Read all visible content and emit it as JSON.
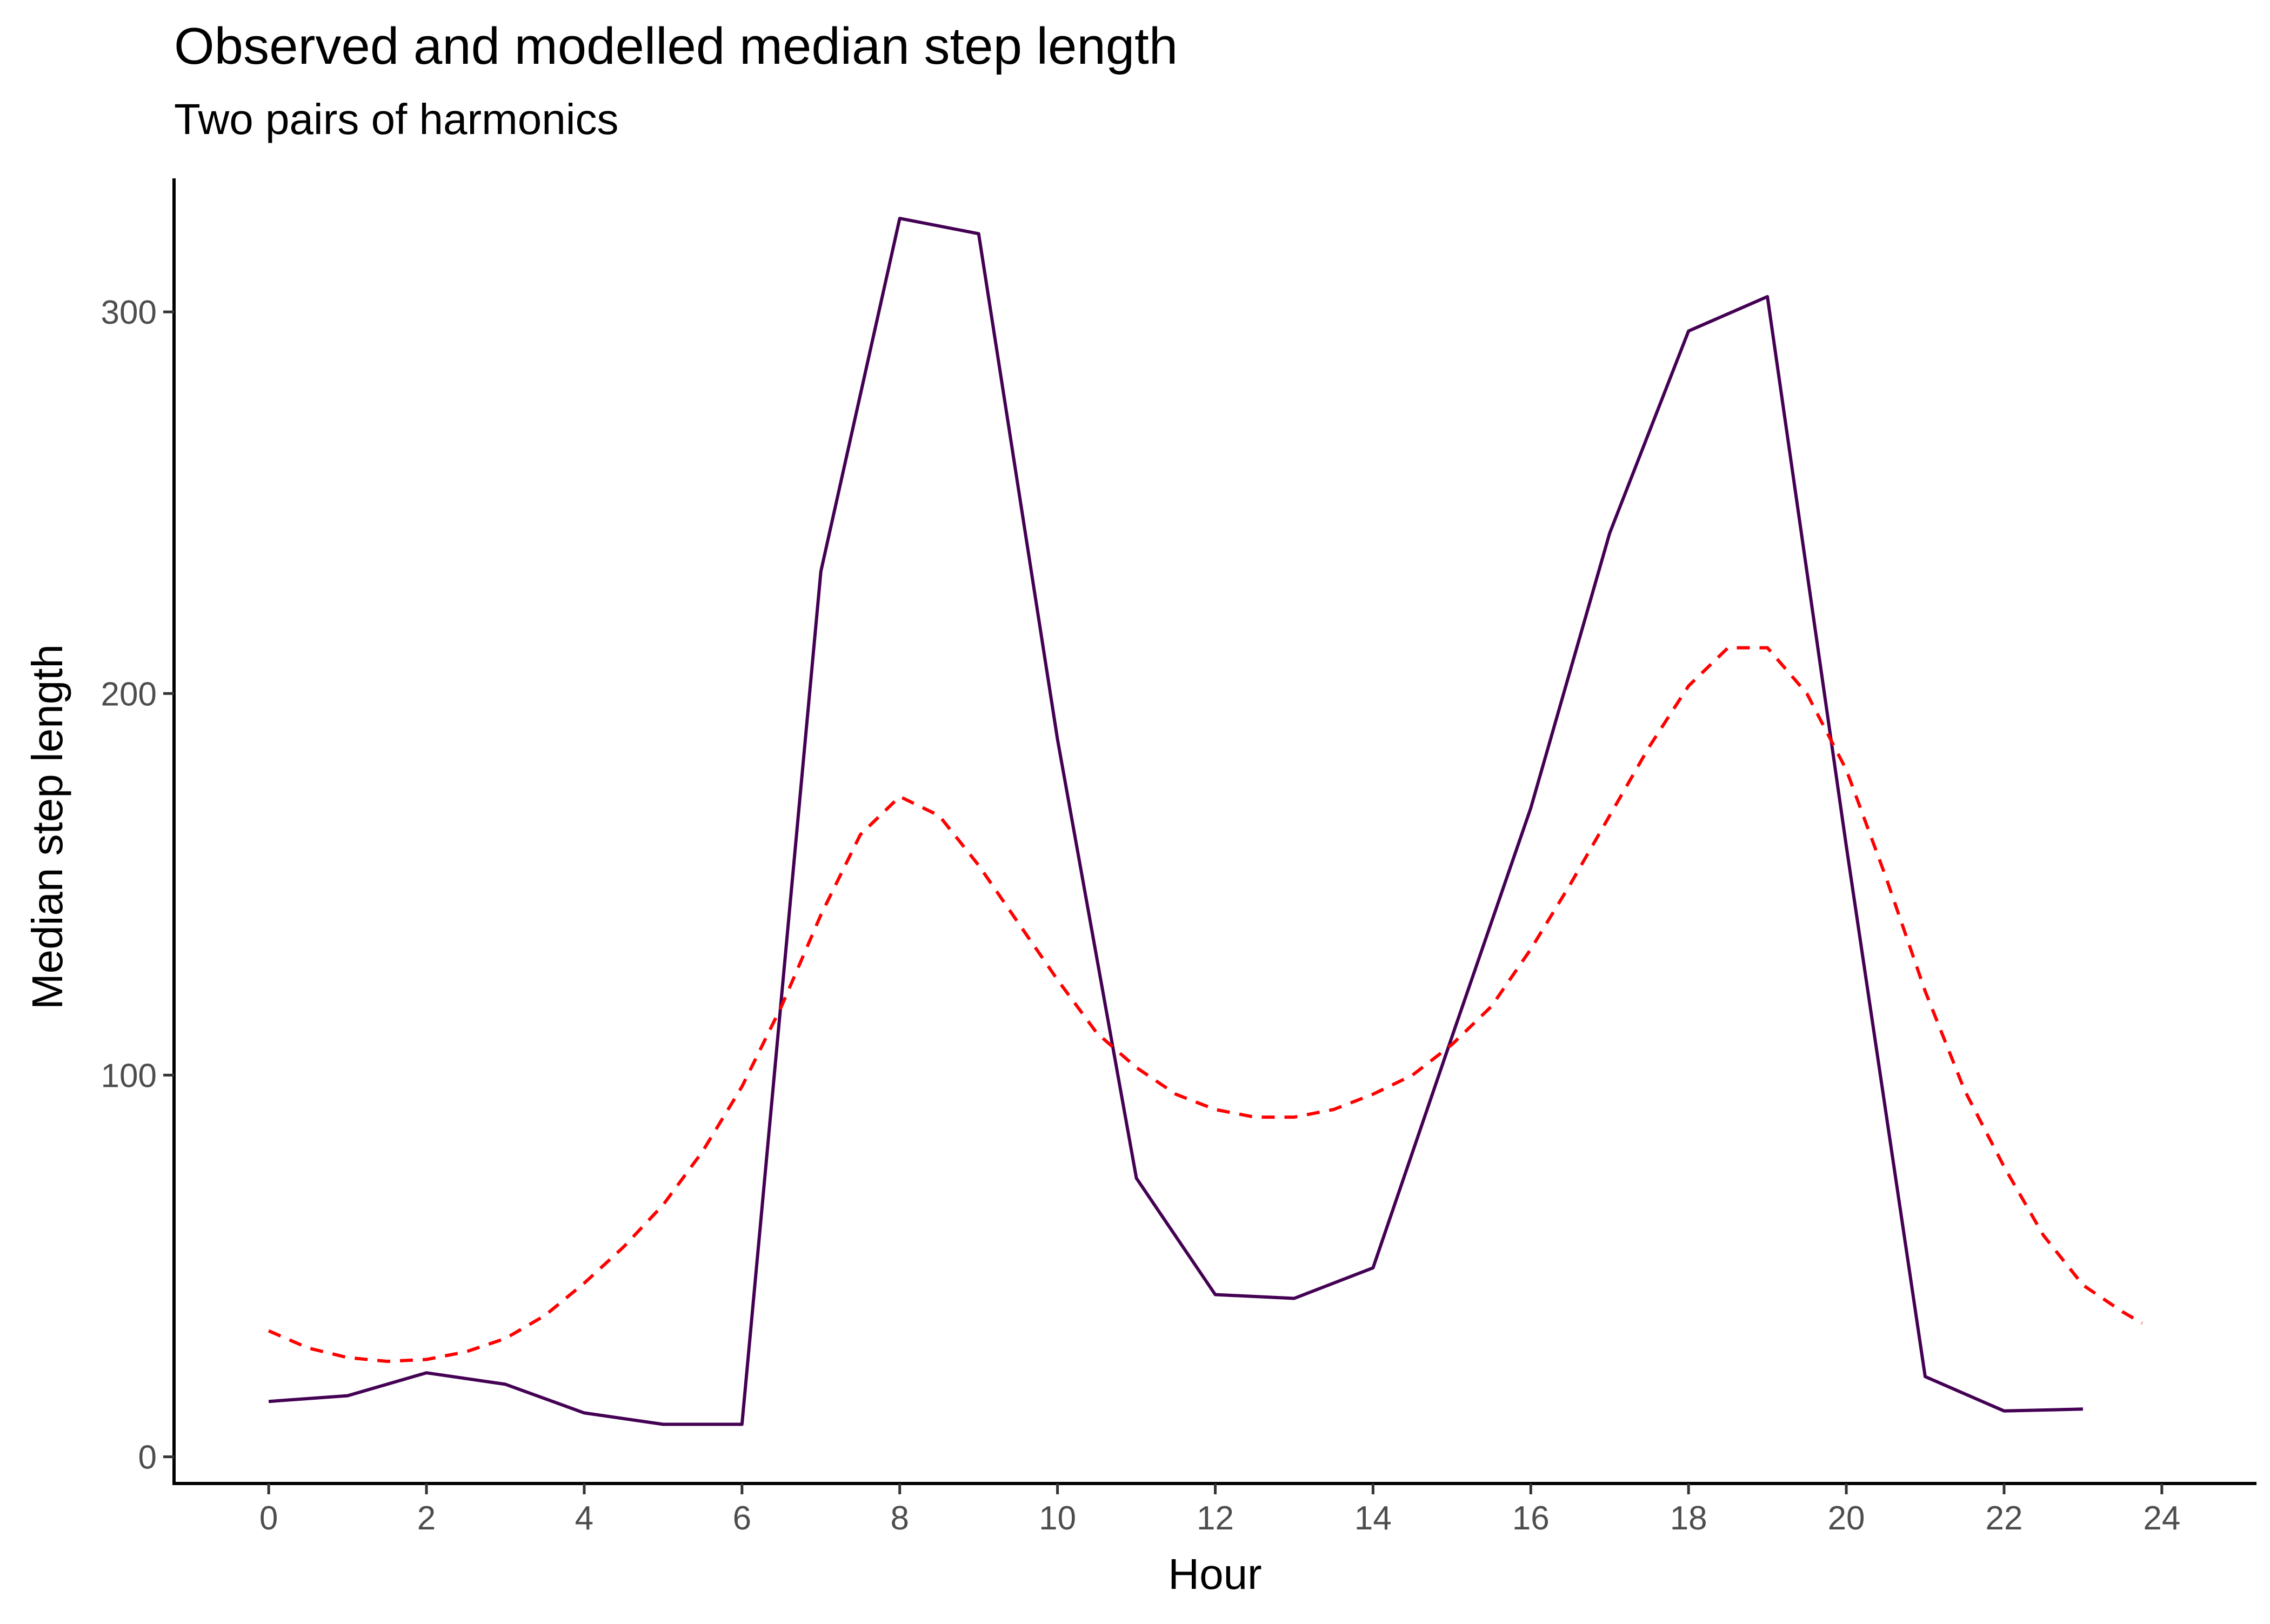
{
  "chart_data": {
    "type": "line",
    "title": "Observed and modelled median step length",
    "subtitle": "Two pairs of harmonics",
    "xlabel": "Hour",
    "ylabel": "Median step length",
    "xlim": [
      -1.2,
      25.2
    ],
    "ylim": [
      -7,
      335
    ],
    "xticks": [
      0,
      2,
      4,
      6,
      8,
      10,
      12,
      14,
      16,
      18,
      20,
      22,
      24
    ],
    "yticks": [
      0,
      100,
      200,
      300
    ],
    "grid": false,
    "legend": "none",
    "series": [
      {
        "style": "solid",
        "color": "#440154",
        "x": [
          0,
          1,
          2,
          3,
          4,
          5,
          6,
          7,
          8,
          9,
          10,
          11,
          12,
          13,
          14,
          15,
          16,
          17,
          18,
          19,
          20,
          21,
          22,
          23
        ],
        "values": [
          14.5,
          16,
          22,
          19,
          11.5,
          8.5,
          8.5,
          232,
          324.5,
          320.5,
          188,
          73,
          42.5,
          41.5,
          49.5,
          110,
          170,
          242,
          295,
          304,
          160,
          21,
          12,
          12.5
        ]
      },
      {
        "style": "dashed",
        "color": "#ff0000",
        "x": [
          0,
          0.5,
          1,
          1.5,
          2,
          2.5,
          3,
          3.5,
          4,
          4.5,
          5,
          5.5,
          6,
          6.5,
          7,
          7.5,
          8,
          8.5,
          9,
          9.5,
          10,
          10.5,
          11,
          11.5,
          12,
          12.5,
          13,
          13.5,
          14,
          14.5,
          15,
          15.5,
          16,
          16.5,
          17,
          17.5,
          18,
          18.5,
          19,
          19.5,
          20,
          20.5,
          21,
          21.5,
          22,
          22.5,
          23,
          23.5,
          23.75
        ],
        "values": [
          33,
          28.5,
          26,
          25,
          25.5,
          27.5,
          31,
          37,
          45.5,
          55,
          66,
          80,
          97,
          118,
          142,
          163,
          173,
          168,
          155,
          140,
          125,
          111,
          102,
          95,
          91,
          89,
          89,
          91,
          95,
          100,
          108,
          118,
          133,
          150,
          168,
          186,
          202,
          212,
          212,
          200,
          180,
          152,
          122,
          96,
          76,
          58,
          45,
          38,
          35
        ]
      }
    ]
  }
}
